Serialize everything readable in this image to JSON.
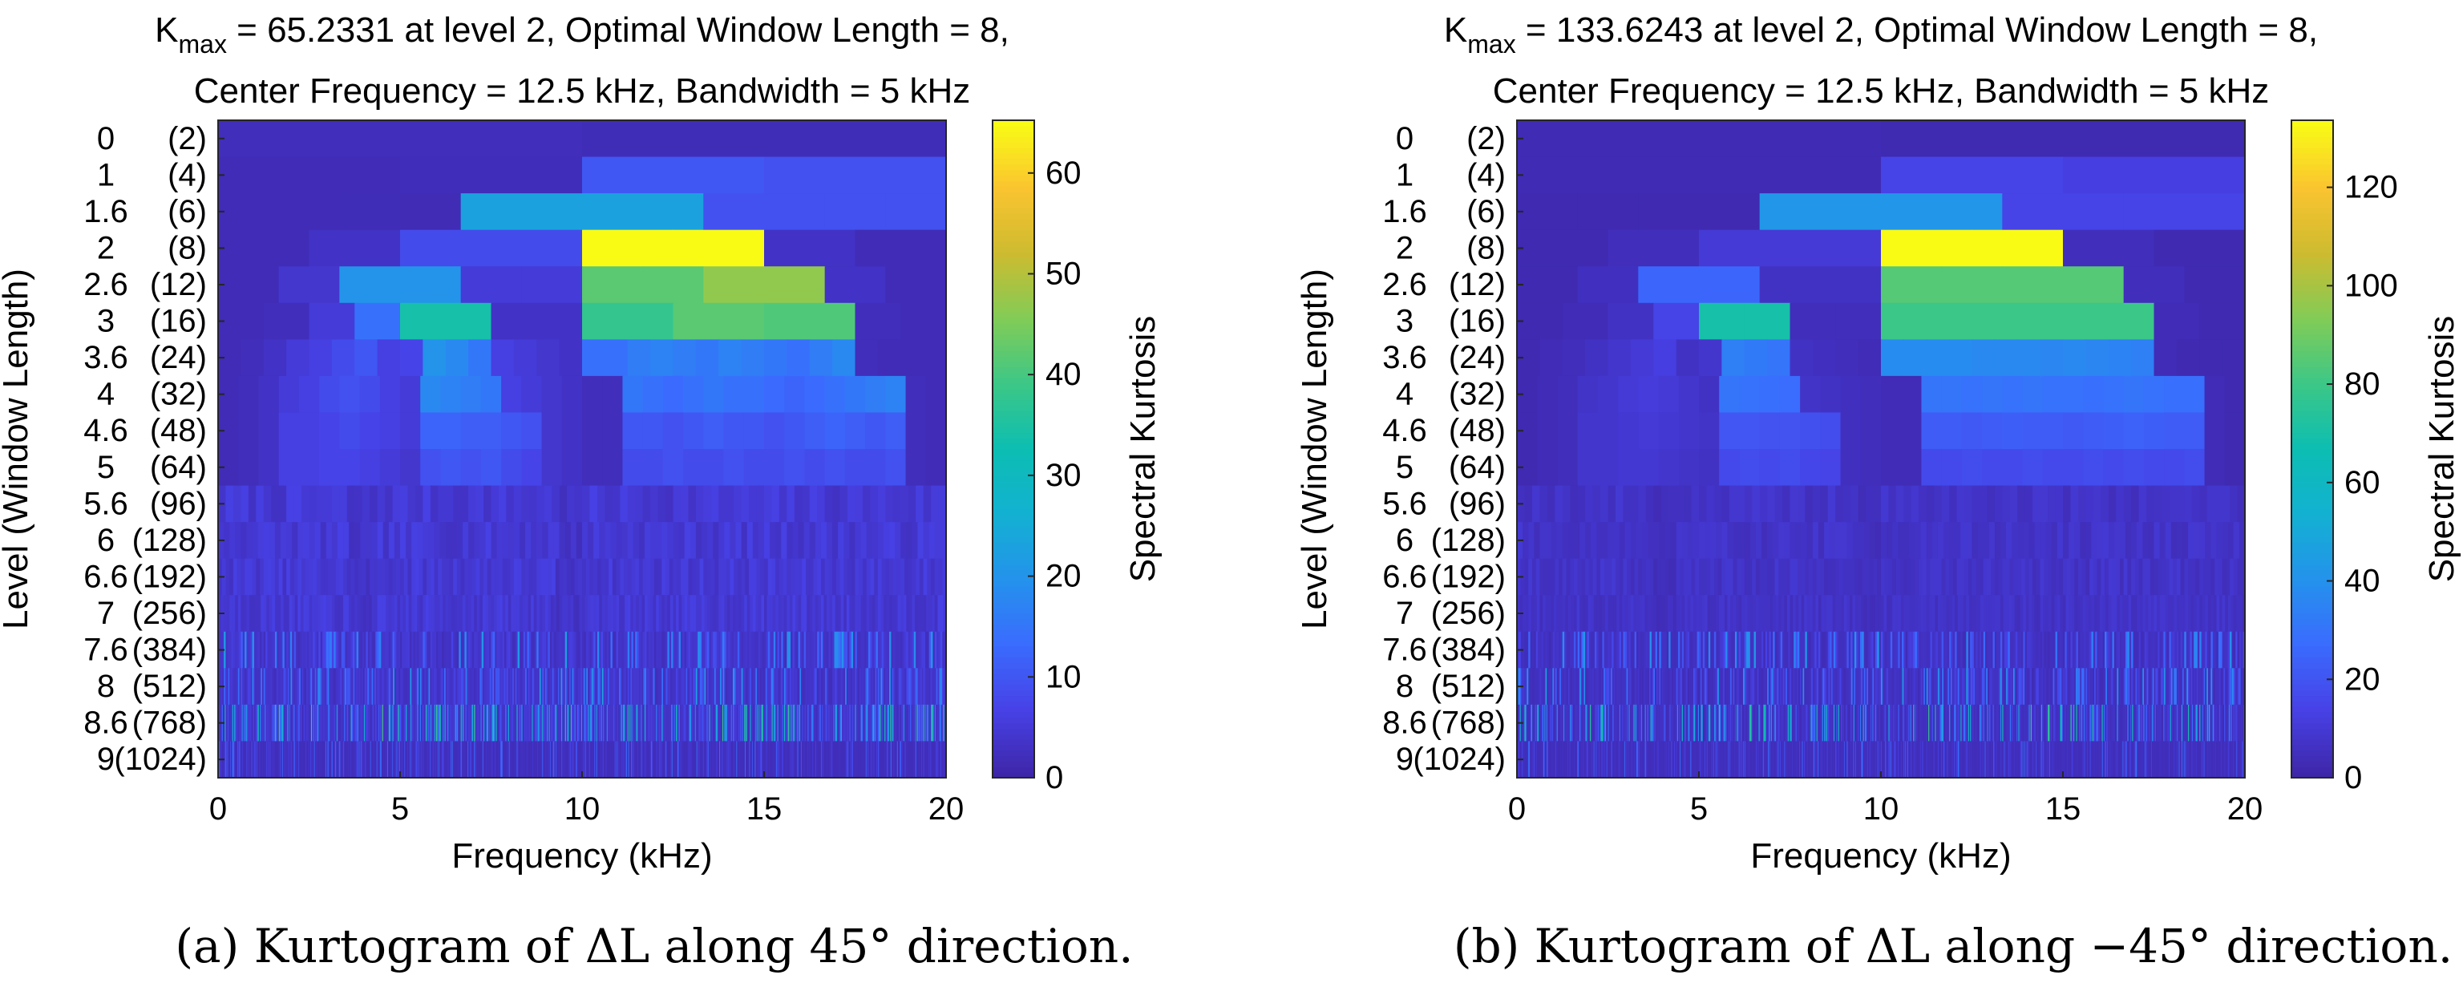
{
  "chart_data": [
    {
      "type": "heatmap",
      "id": "a",
      "title_kmax_prefix": "K",
      "title_kmax_sub": "max",
      "title_line1_rest": " = 65.2331 at level 2, Optimal Window Length = 8,",
      "title_line2": "Center Frequency = 12.5 kHz, Bandwidth = 5 kHz",
      "xlabel": "Frequency (kHz)",
      "ylabel": "Level (Window Length)",
      "colorbar_label": "Spectral Kurtosis",
      "xlim": [
        0,
        20
      ],
      "xticks": [
        "0",
        "5",
        "10",
        "15",
        "20"
      ],
      "clim": [
        0,
        65.2331
      ],
      "colorbar_ticks": [
        0,
        10,
        20,
        30,
        40,
        50,
        60
      ],
      "peak_value": 65.2331,
      "caption": "(a)  Kurtogram of ΔL along 45° direction.",
      "seed": 7,
      "rows": [
        {
          "label": "0",
          "wl": "(2)",
          "v": [
            2.0,
            1.6
          ]
        },
        {
          "label": "1",
          "wl": "(4)",
          "v": [
            1.5,
            1.8,
            10,
            9
          ]
        },
        {
          "label": "1.6",
          "wl": "(6)",
          "v": [
            1.5,
            1.5,
            1.6,
            1.4,
            23,
            23,
            23,
            23,
            9,
            9,
            9,
            9
          ]
        },
        {
          "label": "2",
          "wl": "(8)",
          "v": [
            1.5,
            3,
            8,
            8,
            65.2331,
            65.2331,
            3,
            1.5
          ]
        },
        {
          "label": "2.6",
          "wl": "(12)",
          "v": [
            1.5,
            4,
            20,
            20,
            5,
            5,
            42,
            42,
            47,
            47,
            3,
            1.5
          ]
        },
        {
          "label": "3",
          "wl": "(16)",
          "v": [
            1.5,
            2,
            5,
            14,
            34,
            34,
            3,
            3,
            38,
            38,
            42,
            42,
            41,
            41,
            2,
            1.5
          ]
        },
        {
          "label": "3.6",
          "wl": "(24)",
          "v": [
            1.5,
            2,
            3,
            5,
            6,
            8,
            10,
            6,
            7,
            20,
            18,
            15,
            6,
            5,
            4,
            3,
            14,
            14,
            16,
            17,
            16,
            15,
            17,
            16,
            15,
            14,
            16,
            18,
            2,
            1.5,
            1.5,
            1.5
          ]
        },
        {
          "label": "4",
          "wl": "(32)",
          "v": [
            1.5,
            2,
            3,
            5,
            6,
            8,
            9,
            8,
            6,
            5,
            18,
            17,
            16,
            15,
            6,
            5,
            4,
            3,
            2,
            2,
            15,
            14,
            13,
            14,
            15,
            14,
            14,
            13,
            12,
            13,
            14,
            15,
            16,
            17,
            2,
            1.5
          ]
        },
        {
          "label": "4.6",
          "wl": "(48)",
          "v": [
            1.5,
            2,
            3,
            6,
            6,
            7,
            8,
            7,
            6,
            5,
            12,
            12,
            11,
            11,
            10,
            9,
            4,
            3,
            2,
            2,
            10,
            10,
            9,
            10,
            11,
            10,
            10,
            9,
            10,
            11,
            12,
            11,
            10,
            11,
            2,
            1.5
          ]
        },
        {
          "label": "5",
          "wl": "(64)",
          "v": [
            1.5,
            2,
            3,
            6,
            6,
            7,
            7,
            6,
            5,
            4,
            9,
            10,
            9,
            10,
            8,
            7,
            4,
            3,
            2,
            2,
            8,
            8,
            9,
            8,
            8,
            9,
            8,
            8,
            9,
            8,
            9,
            8,
            8,
            9,
            2,
            1.5
          ]
        }
      ]
    },
    {
      "type": "heatmap",
      "id": "b",
      "title_kmax_prefix": "K",
      "title_kmax_sub": "max",
      "title_line1_rest": " = 133.6243 at level 2, Optimal Window Length = 8,",
      "title_line2": "Center Frequency = 12.5 kHz, Bandwidth = 5 kHz",
      "xlabel": "Frequency (kHz)",
      "ylabel": "Level (Window Length)",
      "colorbar_label": "Spectral Kurtosis",
      "xlim": [
        0,
        20
      ],
      "xticks": [
        "0",
        "5",
        "10",
        "15",
        "20"
      ],
      "clim": [
        0,
        133.6243
      ],
      "colorbar_ticks": [
        0,
        20,
        40,
        60,
        80,
        100,
        120
      ],
      "peak_value": 133.6243,
      "caption": "(b)  Kurtogram of ΔL along −45° direction.",
      "seed": 19,
      "rows": [
        {
          "label": "0",
          "wl": "(2)",
          "v": [
            2.5,
            2.2
          ]
        },
        {
          "label": "1",
          "wl": "(4)",
          "v": [
            2.5,
            2.5,
            14,
            12
          ]
        },
        {
          "label": "1.6",
          "wl": "(6)",
          "v": [
            2,
            2,
            2,
            2,
            42,
            42,
            42,
            42,
            14,
            14,
            14,
            14
          ]
        },
        {
          "label": "2",
          "wl": "(8)",
          "v": [
            2,
            4,
            10,
            10,
            133.6243,
            133.6243,
            4,
            2
          ]
        },
        {
          "label": "2.6",
          "wl": "(12)",
          "v": [
            2,
            5,
            25,
            25,
            6,
            6,
            85,
            85,
            85,
            85,
            4,
            2
          ]
        },
        {
          "label": "3",
          "wl": "(16)",
          "v": [
            2,
            3,
            6,
            14,
            70,
            70,
            4,
            4,
            80,
            80,
            80,
            80,
            80,
            80,
            3,
            2
          ]
        },
        {
          "label": "3.6",
          "wl": "(24)",
          "v": [
            2,
            3,
            4,
            6,
            8,
            10,
            12,
            6,
            8,
            34,
            32,
            30,
            6,
            5,
            4,
            3,
            38,
            38,
            38,
            38,
            37,
            37,
            37,
            36,
            37,
            36,
            35,
            34,
            3,
            2,
            2,
            2
          ]
        },
        {
          "label": "4",
          "wl": "(32)",
          "v": [
            2,
            3,
            4,
            7,
            8,
            10,
            11,
            10,
            8,
            6,
            30,
            29,
            28,
            27,
            7,
            6,
            5,
            4,
            3,
            3,
            30,
            30,
            29,
            30,
            29,
            30,
            29,
            29,
            28,
            29,
            30,
            29,
            28,
            28,
            3,
            2
          ]
        },
        {
          "label": "4.6",
          "wl": "(48)",
          "v": [
            2,
            3,
            4,
            8,
            8,
            9,
            10,
            9,
            8,
            7,
            20,
            20,
            19,
            19,
            18,
            17,
            5,
            4,
            3,
            3,
            22,
            22,
            21,
            22,
            23,
            22,
            22,
            21,
            22,
            23,
            24,
            23,
            22,
            22,
            3,
            2
          ]
        },
        {
          "label": "5",
          "wl": "(64)",
          "v": [
            2,
            3,
            4,
            8,
            8,
            9,
            9,
            8,
            7,
            6,
            16,
            17,
            16,
            17,
            15,
            14,
            5,
            4,
            3,
            3,
            16,
            16,
            17,
            16,
            16,
            17,
            16,
            16,
            17,
            16,
            17,
            16,
            16,
            17,
            3,
            2
          ]
        }
      ]
    }
  ],
  "extra_row_labels": [
    {
      "label": "5.6",
      "wl": "(96)"
    },
    {
      "label": "6",
      "wl": "(128)"
    },
    {
      "label": "6.6",
      "wl": "(192)"
    },
    {
      "label": "7",
      "wl": "(256)"
    },
    {
      "label": "7.6",
      "wl": "(384)"
    },
    {
      "label": "8",
      "wl": "(512)"
    },
    {
      "label": "8.6",
      "wl": "(768)"
    },
    {
      "label": "9",
      "wl": "(1024)"
    }
  ]
}
